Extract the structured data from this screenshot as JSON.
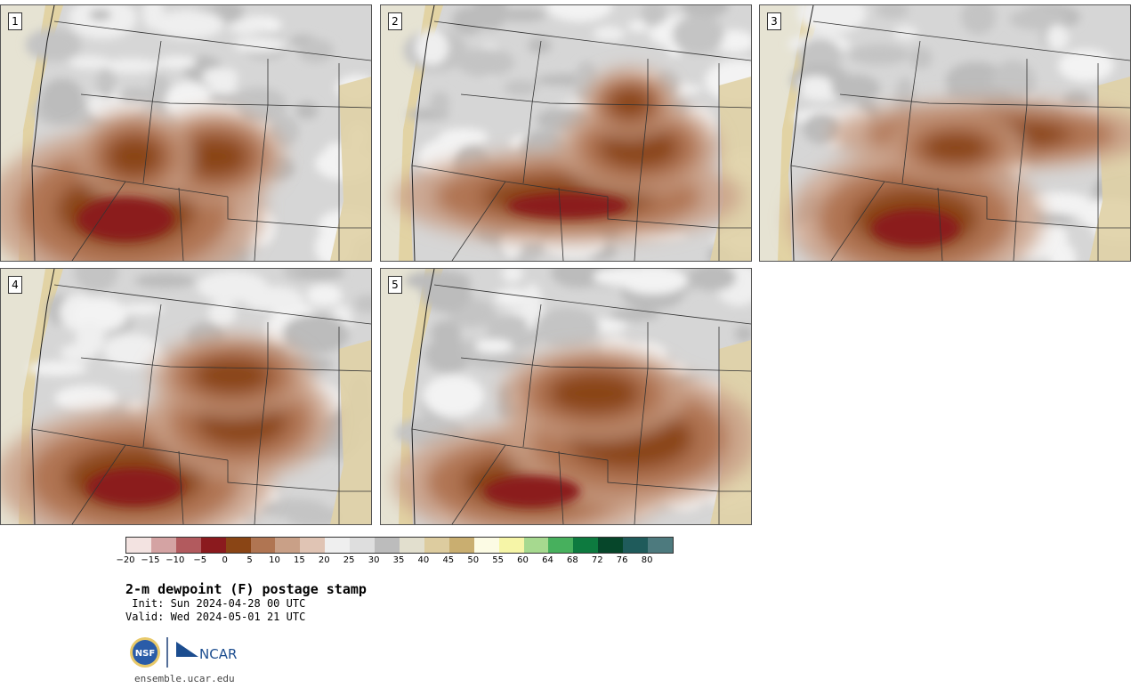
{
  "panels": [
    {
      "id": "1"
    },
    {
      "id": "2"
    },
    {
      "id": "3"
    },
    {
      "id": "4"
    },
    {
      "id": "5"
    }
  ],
  "colorbar": {
    "colors": [
      "#f3e3e1",
      "#d4a3a3",
      "#b25a5e",
      "#8b1a1e",
      "#8a4515",
      "#b07552",
      "#c9a087",
      "#e0c4b4",
      "#efefef",
      "#dedede",
      "#bcbcbc",
      "#e2dfce",
      "#ddcc9f",
      "#c9ae70",
      "#fcfbe4",
      "#f6f5a7",
      "#a6d98f",
      "#47b05d",
      "#0d7a3f",
      "#06462a",
      "#1f5b5b",
      "#4d7a7e"
    ],
    "tick_labels": [
      "−20",
      "−15",
      "−10",
      "−5",
      "0",
      "5",
      "10",
      "15",
      "20",
      "25",
      "30",
      "35",
      "40",
      "45",
      "50",
      "55",
      "60",
      "64",
      "68",
      "72",
      "76",
      "80"
    ]
  },
  "title": "2-m dewpoint (F) postage stamp",
  "init": " Init: Sun 2024-04-28 00 UTC",
  "valid": "Valid: Wed 2024-05-01 21 UTC",
  "logos": {
    "nsf": "NSF",
    "ncar": "NCAR"
  },
  "site": "ensemble.ucar.edu"
}
